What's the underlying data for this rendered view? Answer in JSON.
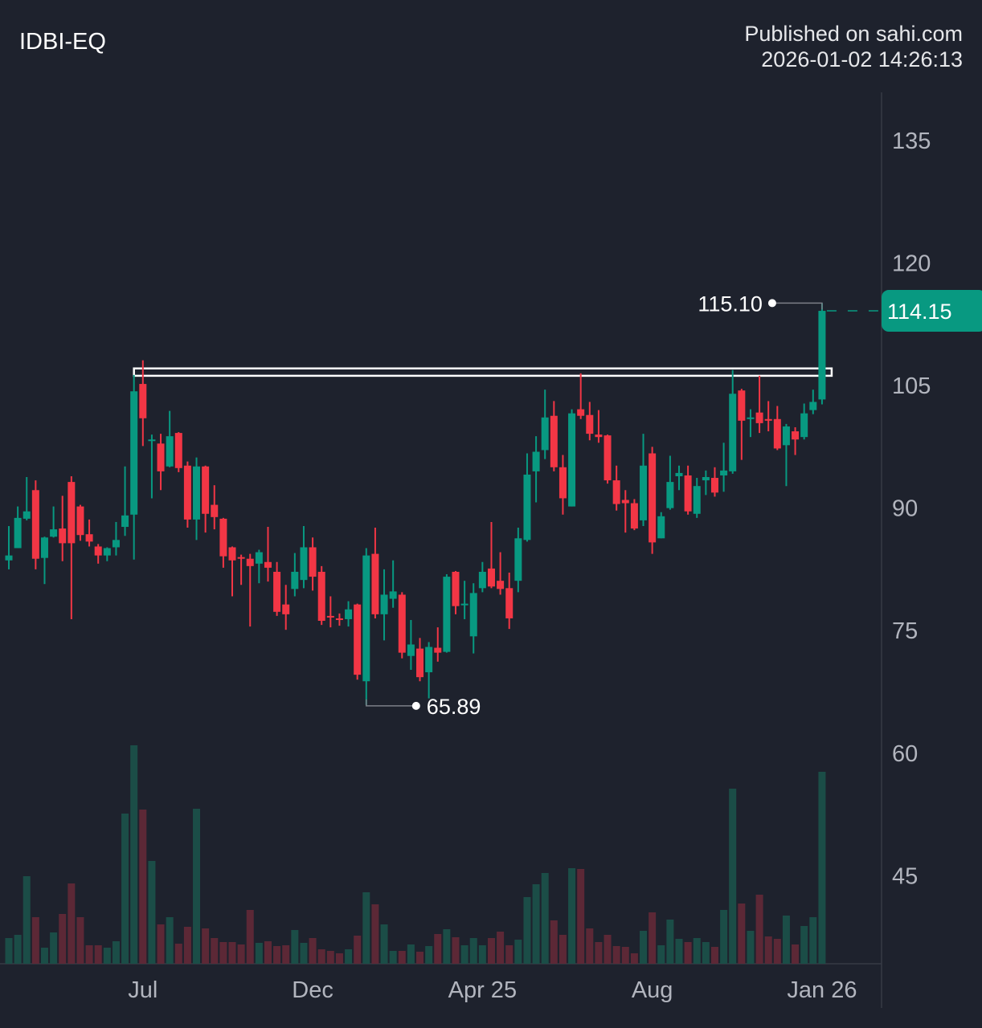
{
  "header": {
    "symbol": "IDBI-EQ",
    "published_line": "Published on sahi.com",
    "timestamp": "2026-01-02 14:26:13"
  },
  "colors": {
    "background": "#1e222d",
    "up": "#089981",
    "down": "#f23645",
    "volume_up": "#1b4d47",
    "volume_down": "#5c2836",
    "last_price_badge": "#089981",
    "axis_text": "#b2b5be"
  },
  "chart_data": {
    "type": "candlestick",
    "title": "IDBI-EQ",
    "y_ticks": [
      135,
      120,
      105,
      90,
      75,
      60,
      45
    ],
    "ylim": [
      36.5,
      141
    ],
    "x_ticks": [
      {
        "label": "Jul",
        "index": 15
      },
      {
        "label": "Dec",
        "index": 34
      },
      {
        "label": "Apr 25",
        "index": 53
      },
      {
        "label": "Aug",
        "index": 72
      },
      {
        "label": "Jan 26",
        "index": 91
      }
    ],
    "ohlc_fields": [
      "open",
      "high",
      "low",
      "close"
    ],
    "candles": [
      [
        83.6,
        87.8,
        82.5,
        84.2
      ],
      [
        85.1,
        90.2,
        85.1,
        88.8
      ],
      [
        88.7,
        93.8,
        88.5,
        89.6
      ],
      [
        92.2,
        93.4,
        82.5,
        83.8
      ],
      [
        83.9,
        86.5,
        80.7,
        86.4
      ],
      [
        86.5,
        90.2,
        86.4,
        87.4
      ],
      [
        87.5,
        91.5,
        83.5,
        85.7
      ],
      [
        93.2,
        93.9,
        76.4,
        85.7
      ],
      [
        90.2,
        90.4,
        86.0,
        86.7
      ],
      [
        86.8,
        88.6,
        85.3,
        85.9
      ],
      [
        85.3,
        85.6,
        83.2,
        84.2
      ],
      [
        84.2,
        85.2,
        83.5,
        85.1
      ],
      [
        85.2,
        88.3,
        84.2,
        86.1
      ],
      [
        87.7,
        95.1,
        86.6,
        89.1
      ],
      [
        89.2,
        106.3,
        83.7,
        104.3
      ],
      [
        105.2,
        108.1,
        97.6,
        101.0
      ],
      [
        98.2,
        99.0,
        91.2,
        98.4
      ],
      [
        97.9,
        99.1,
        92.2,
        94.5
      ],
      [
        95.1,
        101.9,
        95.0,
        98.8
      ],
      [
        99.2,
        99.3,
        94.4,
        94.9
      ],
      [
        95.2,
        95.7,
        87.6,
        88.6
      ],
      [
        88.6,
        96.2,
        86.1,
        95.1
      ],
      [
        95.1,
        95.2,
        87.0,
        89.3
      ],
      [
        90.4,
        92.8,
        87.4,
        88.9
      ],
      [
        88.7,
        88.8,
        82.7,
        84.1
      ],
      [
        85.2,
        85.3,
        79.2,
        83.6
      ],
      [
        84.0,
        84.3,
        80.6,
        83.8
      ],
      [
        83.8,
        84.4,
        75.5,
        82.9
      ],
      [
        83.2,
        84.9,
        80.8,
        84.6
      ],
      [
        83.4,
        87.7,
        81.0,
        82.7
      ],
      [
        82.2,
        83.4,
        76.8,
        77.3
      ],
      [
        78.2,
        80.6,
        75.1,
        77.0
      ],
      [
        80.1,
        84.5,
        79.2,
        82.2
      ],
      [
        81.2,
        87.8,
        80.2,
        85.2
      ],
      [
        85.2,
        86.4,
        79.9,
        81.6
      ],
      [
        82.2,
        82.9,
        75.7,
        76.2
      ],
      [
        76.8,
        79.2,
        75.4,
        76.6
      ],
      [
        76.5,
        77.1,
        75.6,
        76.3
      ],
      [
        76.4,
        78.6,
        75.5,
        77.6
      ],
      [
        78.2,
        78.3,
        69.0,
        69.6
      ],
      [
        68.8,
        85.1,
        65.89,
        84.2
      ],
      [
        84.4,
        87.6,
        76.5,
        77.0
      ],
      [
        77.0,
        82.5,
        73.8,
        79.4
      ],
      [
        78.9,
        83.6,
        77.8,
        79.8
      ],
      [
        79.4,
        79.7,
        71.6,
        72.3
      ],
      [
        71.9,
        76.3,
        70.2,
        73.3
      ],
      [
        72.8,
        74.1,
        68.8,
        69.3
      ],
      [
        69.9,
        73.6,
        66.7,
        73.0
      ],
      [
        72.9,
        75.4,
        71.2,
        72.3
      ],
      [
        72.4,
        81.9,
        72.3,
        81.6
      ],
      [
        82.2,
        82.3,
        77.0,
        78.0
      ],
      [
        78.1,
        81.1,
        76.4,
        78.3
      ],
      [
        74.3,
        80.8,
        72.2,
        79.6
      ],
      [
        80.2,
        83.4,
        79.7,
        82.2
      ],
      [
        82.6,
        88.3,
        80.2,
        80.4
      ],
      [
        81.1,
        84.6,
        79.4,
        80.1
      ],
      [
        80.2,
        82.1,
        75.2,
        76.5
      ],
      [
        81.1,
        87.6,
        79.7,
        86.3
      ],
      [
        86.1,
        96.7,
        85.9,
        94.1
      ],
      [
        94.5,
        98.8,
        90.7,
        96.9
      ],
      [
        97.1,
        104.5,
        96.0,
        101.1
      ],
      [
        101.3,
        103.1,
        94.5,
        95.0
      ],
      [
        95.0,
        96.5,
        89.2,
        91.2
      ],
      [
        90.2,
        102.1,
        90.2,
        101.6
      ],
      [
        102.1,
        106.5,
        100.9,
        101.3
      ],
      [
        101.4,
        103.0,
        98.3,
        99.1
      ],
      [
        99.0,
        102.0,
        98.0,
        98.7
      ],
      [
        98.9,
        99.0,
        93.0,
        93.4
      ],
      [
        93.4,
        95.2,
        89.7,
        90.5
      ],
      [
        91.0,
        92.2,
        87.0,
        90.6
      ],
      [
        90.6,
        91.1,
        87.3,
        87.5
      ],
      [
        88.5,
        99.1,
        87.8,
        95.2
      ],
      [
        96.7,
        97.5,
        84.4,
        85.8
      ],
      [
        86.3,
        89.5,
        86.3,
        89.0
      ],
      [
        90.0,
        96.4,
        89.8,
        93.2
      ],
      [
        93.9,
        95.2,
        92.2,
        94.3
      ],
      [
        94.0,
        95.2,
        89.2,
        89.6
      ],
      [
        89.3,
        93.7,
        88.8,
        92.7
      ],
      [
        93.4,
        94.6,
        91.6,
        93.8
      ],
      [
        93.7,
        95.0,
        91.4,
        91.9
      ],
      [
        94.0,
        98.0,
        92.0,
        94.6
      ],
      [
        94.5,
        106.9,
        94.2,
        104.0
      ],
      [
        104.4,
        104.6,
        95.9,
        100.7
      ],
      [
        100.9,
        102.1,
        98.7,
        101.1
      ],
      [
        101.7,
        106.2,
        99.2,
        100.4
      ],
      [
        100.9,
        103.1,
        99.4,
        100.7
      ],
      [
        100.9,
        102.5,
        97.1,
        97.3
      ],
      [
        97.7,
        100.3,
        92.7,
        100.0
      ],
      [
        99.4,
        99.9,
        96.5,
        98.4
      ],
      [
        98.7,
        102.8,
        98.4,
        101.6
      ],
      [
        102.0,
        104.5,
        101.5,
        103.0
      ],
      [
        103.3,
        115.1,
        102.7,
        114.15
      ]
    ],
    "volume_relative": [
      32,
      36,
      109,
      58,
      20,
      39,
      62,
      100,
      58,
      23,
      23,
      20,
      28,
      187,
      272,
      192,
      128,
      49,
      58,
      25,
      46,
      193,
      44,
      32,
      27,
      27,
      24,
      67,
      26,
      28,
      22,
      23,
      42,
      26,
      32,
      18,
      16,
      13,
      18,
      35,
      89,
      74,
      49,
      16,
      16,
      24,
      15,
      22,
      37,
      43,
      33,
      23,
      32,
      23,
      32,
      40,
      23,
      30,
      83,
      99,
      113,
      54,
      36,
      119,
      118,
      44,
      27,
      36,
      22,
      21,
      13,
      41,
      64,
      23,
      55,
      31,
      27,
      32,
      27,
      21,
      67,
      218,
      75,
      41,
      86,
      34,
      31,
      60,
      24,
      47,
      58,
      239
    ],
    "annotations": {
      "high_label": "115.10",
      "high_value": 115.1,
      "high_index": 91,
      "low_label": "65.89",
      "low_value": 65.89,
      "low_index": 40,
      "last_price_label": "114.15",
      "last_price": 114.15,
      "resistance_zone": {
        "from_index": 14,
        "to_index": 91,
        "low": 106.2,
        "high": 107.1
      }
    },
    "grid": false,
    "legend": "none"
  }
}
